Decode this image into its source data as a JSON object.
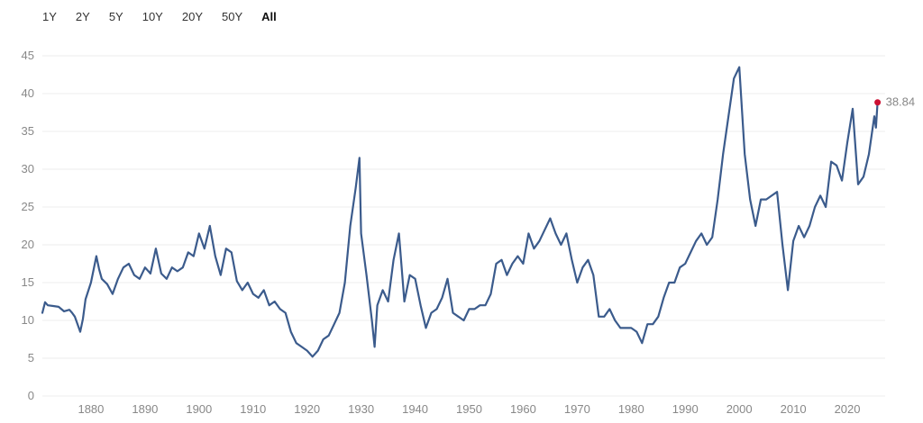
{
  "range_selector": {
    "options": [
      "1Y",
      "2Y",
      "5Y",
      "10Y",
      "20Y",
      "50Y",
      "All"
    ],
    "selected": "All"
  },
  "colors": {
    "line": "#3b5b8c",
    "end_marker": "#cc1133",
    "grid": "#eeeeee"
  },
  "chart_data": {
    "type": "line",
    "title": "",
    "xlabel": "",
    "ylabel": "",
    "xlim": [
      1871,
      2027
    ],
    "ylim": [
      0,
      45
    ],
    "grid": true,
    "y_ticks": [
      0,
      5,
      10,
      15,
      20,
      25,
      30,
      35,
      40,
      45
    ],
    "x_ticks": [
      1880,
      1890,
      1900,
      1910,
      1920,
      1930,
      1940,
      1950,
      1960,
      1970,
      1980,
      1990,
      2000,
      2010,
      2020
    ],
    "end_label": "38.84",
    "series": [
      {
        "x": [
          1871,
          1871.5,
          1872,
          1873,
          1874,
          1875,
          1876,
          1876.5,
          1877,
          1878,
          1878.5,
          1879,
          1880,
          1881,
          1881.5,
          1882,
          1883,
          1884,
          1885,
          1886,
          1887,
          1888,
          1889,
          1890,
          1891,
          1892,
          1893,
          1894,
          1895,
          1896,
          1897,
          1898,
          1899,
          1900,
          1901,
          1902,
          1903,
          1904,
          1905,
          1906,
          1907,
          1908,
          1909,
          1910,
          1911,
          1912,
          1913,
          1914,
          1915,
          1916,
          1917,
          1918,
          1919,
          1920,
          1921,
          1922,
          1923,
          1924,
          1925,
          1926,
          1927,
          1928,
          1929,
          1929.7,
          1930,
          1931,
          1932,
          1932.5,
          1933,
          1934,
          1935,
          1936,
          1937,
          1938,
          1939,
          1940,
          1941,
          1942,
          1943,
          1944,
          1945,
          1946,
          1947,
          1948,
          1949,
          1950,
          1951,
          1952,
          1953,
          1954,
          1955,
          1956,
          1957,
          1958,
          1959,
          1960,
          1961,
          1962,
          1963,
          1964,
          1965,
          1966,
          1967,
          1968,
          1969,
          1970,
          1971,
          1972,
          1973,
          1974,
          1975,
          1976,
          1977,
          1978,
          1979,
          1980,
          1981,
          1982,
          1983,
          1984,
          1985,
          1986,
          1987,
          1988,
          1989,
          1990,
          1991,
          1992,
          1993,
          1994,
          1995,
          1996,
          1997,
          1998,
          1999,
          2000,
          2001,
          2002,
          2003,
          2004,
          2005,
          2006,
          2007,
          2008,
          2009,
          2010,
          2011,
          2012,
          2013,
          2014,
          2015,
          2016,
          2017,
          2018,
          2019,
          2020,
          2021,
          2022,
          2023,
          2024,
          2025,
          2025.3,
          2025.6
        ],
        "values": [
          11,
          12.4,
          12,
          11.9,
          11.8,
          11.2,
          11.4,
          11.0,
          10.5,
          8.5,
          10.2,
          12.8,
          15,
          18.5,
          16.8,
          15.5,
          14.8,
          13.5,
          15.5,
          17,
          17.5,
          16,
          15.5,
          17,
          16.2,
          19.5,
          16.2,
          15.5,
          17,
          16.5,
          17,
          19,
          18.5,
          21.5,
          19.5,
          22.5,
          18.5,
          16,
          19.5,
          19,
          15.2,
          14,
          15,
          13.5,
          13,
          14,
          12,
          12.5,
          11.5,
          11,
          8.5,
          7,
          6.5,
          6,
          5.2,
          6,
          7.5,
          8,
          9.5,
          11,
          15,
          22.5,
          27.5,
          31.5,
          21.5,
          16,
          10,
          6.5,
          12,
          14,
          12.5,
          18,
          21.5,
          12.5,
          16,
          15.5,
          12,
          9,
          11,
          11.5,
          13,
          15.5,
          11,
          10.5,
          10,
          11.5,
          11.5,
          12,
          12,
          13.5,
          17.5,
          18,
          16,
          17.5,
          18.5,
          17.5,
          21.5,
          19.5,
          20.5,
          22,
          23.5,
          21.5,
          20,
          21.5,
          18,
          15,
          17,
          18,
          16,
          10.5,
          10.5,
          11.5,
          10,
          9,
          9,
          9,
          8.5,
          7,
          9.5,
          9.5,
          10.5,
          13,
          15,
          15,
          17,
          17.5,
          19,
          20.5,
          21.5,
          20,
          21,
          26,
          32,
          37,
          42,
          43.5,
          32,
          26,
          22.5,
          26,
          26,
          26.5,
          27,
          20,
          14,
          20.5,
          22.5,
          21,
          22.5,
          25,
          26.5,
          25,
          31,
          30.5,
          28.5,
          33.5,
          38,
          28,
          29,
          32,
          37,
          35.5,
          38.84
        ]
      }
    ]
  }
}
